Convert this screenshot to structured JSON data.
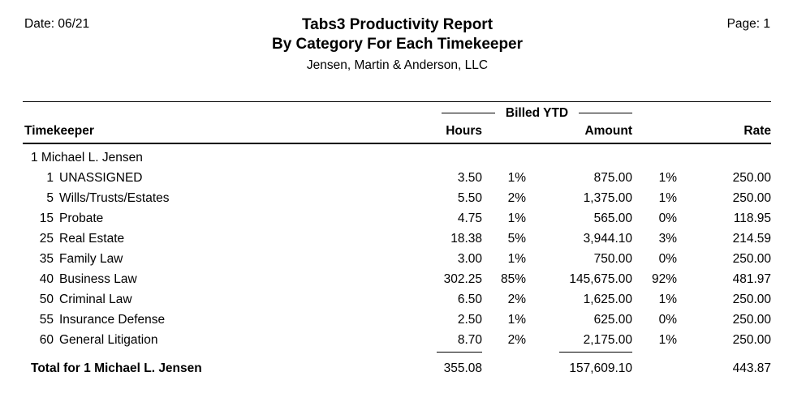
{
  "header": {
    "date_label": "Date: 06/21",
    "title_line1": "Tabs3 Productivity Report",
    "title_line2": "By Category For Each Timekeeper",
    "subtitle": "Jensen, Martin & Anderson, LLC",
    "page_label": "Page: 1"
  },
  "table": {
    "group_header": "Billed YTD",
    "columns": {
      "timekeeper": "Timekeeper",
      "hours": "Hours",
      "amount": "Amount",
      "rate": "Rate"
    },
    "timekeeper_row": "1 Michael L. Jensen",
    "rows": [
      {
        "number": "1",
        "category": "UNASSIGNED",
        "hours": "3.50",
        "hours_pct": "1%",
        "amount": "875.00",
        "amount_pct": "1%",
        "rate": "250.00"
      },
      {
        "number": "5",
        "category": "Wills/Trusts/Estates",
        "hours": "5.50",
        "hours_pct": "2%",
        "amount": "1,375.00",
        "amount_pct": "1%",
        "rate": "250.00"
      },
      {
        "number": "15",
        "category": "Probate",
        "hours": "4.75",
        "hours_pct": "1%",
        "amount": "565.00",
        "amount_pct": "0%",
        "rate": "118.95"
      },
      {
        "number": "25",
        "category": "Real Estate",
        "hours": "18.38",
        "hours_pct": "5%",
        "amount": "3,944.10",
        "amount_pct": "3%",
        "rate": "214.59"
      },
      {
        "number": "35",
        "category": "Family Law",
        "hours": "3.00",
        "hours_pct": "1%",
        "amount": "750.00",
        "amount_pct": "0%",
        "rate": "250.00"
      },
      {
        "number": "40",
        "category": "Business Law",
        "hours": "302.25",
        "hours_pct": "85%",
        "amount": "145,675.00",
        "amount_pct": "92%",
        "rate": "481.97"
      },
      {
        "number": "50",
        "category": "Criminal Law",
        "hours": "6.50",
        "hours_pct": "2%",
        "amount": "1,625.00",
        "amount_pct": "1%",
        "rate": "250.00"
      },
      {
        "number": "55",
        "category": "Insurance Defense",
        "hours": "2.50",
        "hours_pct": "1%",
        "amount": "625.00",
        "amount_pct": "0%",
        "rate": "250.00"
      },
      {
        "number": "60",
        "category": "General Litigation",
        "hours": "8.70",
        "hours_pct": "2%",
        "amount": "2,175.00",
        "amount_pct": "1%",
        "rate": "250.00"
      }
    ],
    "total": {
      "label": "Total for 1 Michael L. Jensen",
      "hours": "355.08",
      "amount": "157,609.10",
      "rate": "443.87"
    }
  }
}
